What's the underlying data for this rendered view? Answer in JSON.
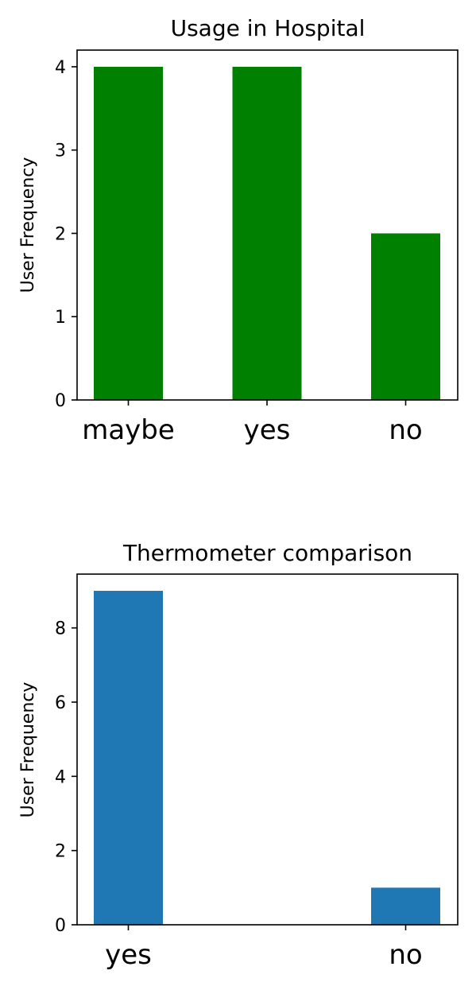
{
  "chart_data": [
    {
      "type": "bar",
      "title": "Usage in Hospital",
      "ylabel": "User Frequency",
      "xlabel": "",
      "categories": [
        "maybe",
        "yes",
        "no"
      ],
      "values": [
        4,
        4,
        2
      ],
      "yticks": [
        0,
        1,
        2,
        3,
        4
      ],
      "ylim": [
        0,
        4.2
      ],
      "color": "#008000",
      "grid": false
    },
    {
      "type": "bar",
      "title": "Thermometer comparison",
      "ylabel": "User Frequency",
      "xlabel": "",
      "categories": [
        "yes",
        "no"
      ],
      "values": [
        9,
        1
      ],
      "yticks": [
        0,
        2,
        4,
        6,
        8
      ],
      "ylim": [
        0,
        9.45
      ],
      "color": "#1f77b4",
      "grid": false
    }
  ]
}
